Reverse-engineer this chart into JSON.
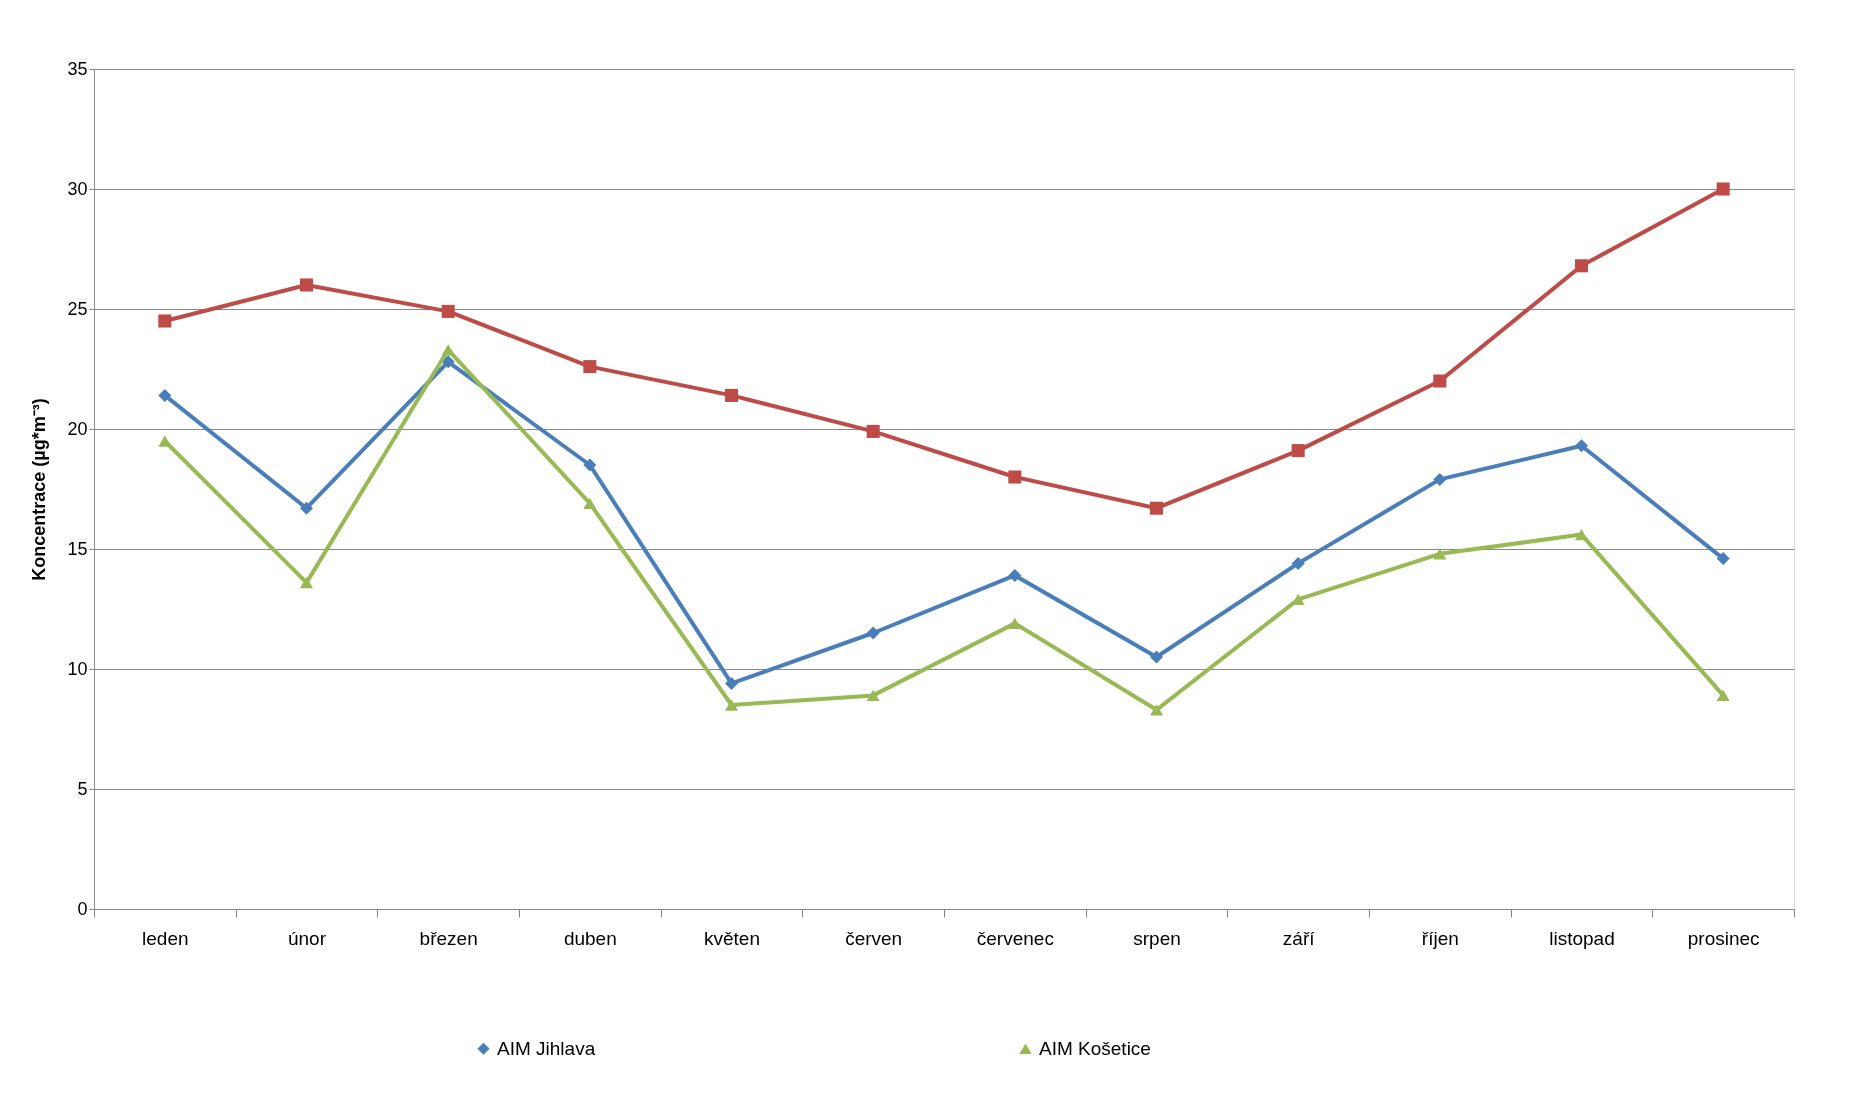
{
  "chart_data": {
    "type": "line",
    "ylabel": "Koncentrace (µg*m⁻³)",
    "categories": [
      "leden",
      "únor",
      "březen",
      "duben",
      "květen",
      "červen",
      "červenec",
      "srpen",
      "září",
      "říjen",
      "listopad",
      "prosinec"
    ],
    "series": [
      {
        "name": "AIM Jihlava",
        "color": "#4a7ebb",
        "marker": "diamond",
        "values": [
          21.4,
          16.7,
          22.8,
          18.5,
          9.4,
          11.5,
          13.9,
          10.5,
          14.4,
          17.9,
          19.3,
          14.6
        ]
      },
      {
        "color": "#be4b48",
        "marker": "square",
        "values": [
          24.5,
          26.0,
          24.9,
          22.6,
          21.4,
          19.9,
          18.0,
          16.7,
          19.1,
          22.0,
          26.8,
          30.0
        ]
      },
      {
        "name": "AIM Košetice",
        "color": "#98b954",
        "marker": "triangle",
        "values": [
          19.5,
          13.6,
          23.3,
          16.9,
          8.5,
          8.9,
          11.9,
          8.3,
          12.9,
          14.8,
          15.6,
          8.9
        ]
      }
    ],
    "ylim": [
      0,
      35
    ],
    "yticks": [
      0,
      5,
      10,
      15,
      20,
      25,
      30,
      35
    ],
    "grid": "y",
    "legend": "bottom",
    "line_style": "solid"
  }
}
